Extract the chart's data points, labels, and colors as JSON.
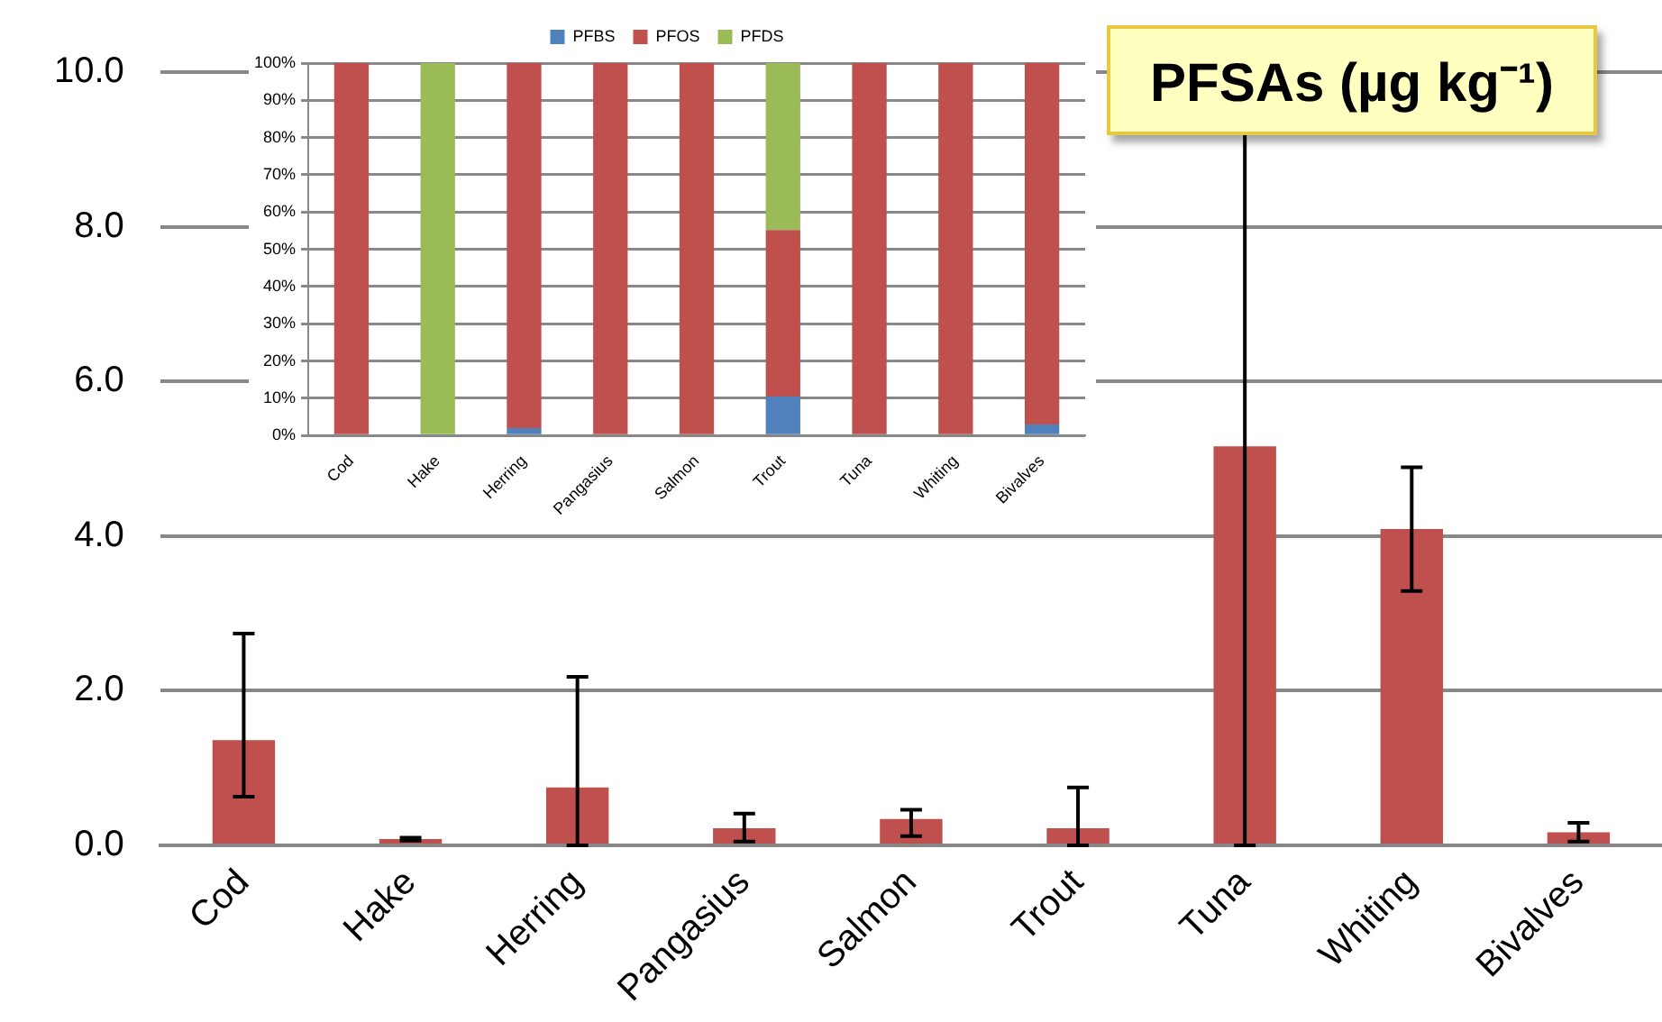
{
  "chart_data": [
    {
      "type": "bar",
      "title": "PFSAs (µg kg⁻¹)",
      "categories": [
        "Cod",
        "Hake",
        "Herring",
        "Pangasius",
        "Salmon",
        "Trout",
        "Tuna",
        "Whiting",
        "Bivalves"
      ],
      "values": [
        1.36,
        0.08,
        0.75,
        0.22,
        0.34,
        0.22,
        5.16,
        4.09,
        0.17
      ],
      "color": "#c0504d",
      "errors": [
        [
          0.63,
          2.74
        ],
        [
          0.06,
          0.1
        ],
        [
          0,
          2.18
        ],
        [
          0.05,
          0.41
        ],
        [
          0.12,
          0.46
        ],
        [
          0,
          0.75
        ],
        [
          0,
          10
        ],
        [
          3.29,
          4.89
        ],
        [
          0.05,
          0.29
        ]
      ],
      "ylim": [
        0,
        10
      ],
      "yticks": [
        {
          "value": 0,
          "label": "0.0"
        },
        {
          "value": 2,
          "label": "2.0"
        },
        {
          "value": 4,
          "label": "4.0"
        },
        {
          "value": 6,
          "label": "6.0"
        },
        {
          "value": 8,
          "label": "8.0"
        },
        {
          "value": 10,
          "label": "10.0"
        }
      ],
      "grid": "y",
      "legend": false
    },
    {
      "type": "bar",
      "stacked": true,
      "categories": [
        "Cod",
        "Hake",
        "Herring",
        "Pangasius",
        "Salmon",
        "Trout",
        "Tuna",
        "Whiting",
        "Bivalves"
      ],
      "series": [
        {
          "name": "PFBS",
          "color": "#4f81bd",
          "values": [
            0,
            0,
            2,
            0,
            0,
            10.5,
            0,
            0,
            3
          ]
        },
        {
          "name": "PFOS",
          "color": "#c0504d",
          "values": [
            100,
            0,
            98,
            100,
            100,
            44.7,
            100,
            100,
            97
          ]
        },
        {
          "name": "PFDS",
          "color": "#9bbb59",
          "values": [
            0,
            100,
            0,
            0,
            0,
            44.8,
            0,
            0,
            0
          ]
        }
      ],
      "ylim": [
        0,
        100
      ],
      "yticks": [
        {
          "value": 0,
          "label": "0%"
        },
        {
          "value": 10,
          "label": "10%"
        },
        {
          "value": 20,
          "label": "20%"
        },
        {
          "value": 30,
          "label": "30%"
        },
        {
          "value": 40,
          "label": "40%"
        },
        {
          "value": 50,
          "label": "50%"
        },
        {
          "value": 60,
          "label": "60%"
        },
        {
          "value": 70,
          "label": "70%"
        },
        {
          "value": 80,
          "label": "80%"
        },
        {
          "value": 90,
          "label": "90%"
        },
        {
          "value": 100,
          "label": "100%"
        }
      ],
      "grid": "y",
      "legend": "top"
    }
  ]
}
